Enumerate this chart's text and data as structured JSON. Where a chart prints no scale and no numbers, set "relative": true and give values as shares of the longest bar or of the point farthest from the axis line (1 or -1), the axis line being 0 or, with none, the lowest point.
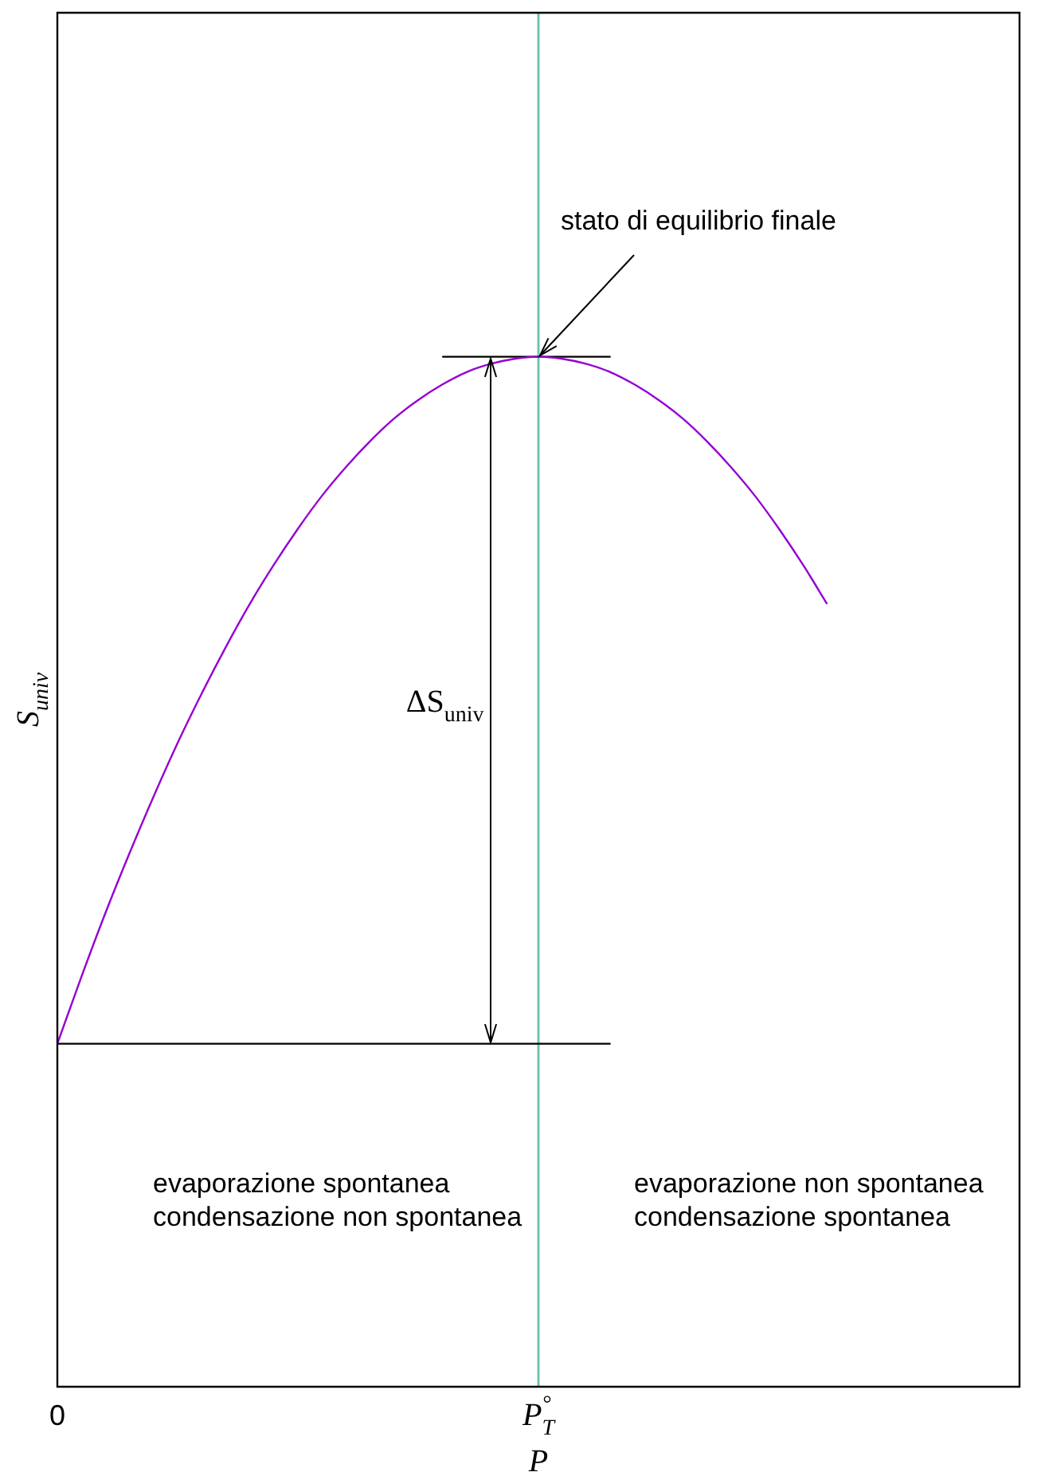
{
  "chart_data": {
    "type": "line",
    "relative": true,
    "xlabel": "P",
    "ylabel": "S$_{univ}$",
    "tick_labels": "x",
    "legend": false,
    "marker": "none",
    "categories": [
      "0",
      null,
      null,
      null,
      null,
      null,
      null,
      null,
      null,
      null,
      null,
      null,
      null,
      null,
      null,
      null,
      null,
      null,
      null,
      null,
      "P$_{T}$$^{°}$",
      null,
      null,
      null,
      null,
      null,
      null,
      null,
      null,
      null,
      null,
      null,
      null,
      null,
      null,
      null,
      null,
      null,
      null,
      null,
      null
    ],
    "series": [
      {
        "color": "#9400d3",
        "values": [
          0.333,
          0.398,
          0.46,
          0.518,
          0.573,
          0.625,
          0.673,
          0.718,
          0.76,
          0.798,
          0.833,
          0.865,
          0.893,
          0.918,
          0.94,
          0.958,
          0.973,
          0.985,
          0.993,
          0.998,
          1,
          0.998,
          0.993,
          0.985,
          0.973,
          0.958,
          0.94,
          0.918,
          0.893,
          0.865,
          0.833,
          0.798,
          0.76,
          null,
          null,
          null,
          null,
          null,
          null,
          null,
          null
        ]
      },
      {
        "color": "#000000",
        "values": [
          null,
          null,
          null,
          null,
          null,
          null,
          null,
          null,
          null,
          null,
          null,
          null,
          null,
          null,
          null,
          null,
          1,
          1,
          1,
          1,
          1,
          1,
          1,
          1,
          null,
          null,
          null,
          null,
          null,
          null,
          null,
          null,
          null,
          null,
          null,
          null,
          null,
          null,
          null,
          null,
          null
        ]
      },
      {
        "color": "#000000",
        "values": [
          0.333,
          0.333,
          0.333,
          0.333,
          0.333,
          0.333,
          0.333,
          0.333,
          0.333,
          0.333,
          0.333,
          0.333,
          0.333,
          0.333,
          0.333,
          0.333,
          0.333,
          0.333,
          0.333,
          0.333,
          0.333,
          0.333,
          0.333,
          0.333,
          null,
          null,
          null,
          null,
          null,
          null,
          null,
          null,
          null,
          null,
          null,
          null,
          null,
          null,
          null,
          null,
          null
        ]
      }
    ],
    "ref_lines": [
      {
        "axis": "x",
        "value": "P$_{T}$$^{°}$",
        "color": "#6cc5b0"
      }
    ],
    "annotations": [
      {
        "text": "stato di equilibrio finale",
        "x": "P$_{T}$$^{°}$",
        "y": 1
      },
      "ΔS$_{univ}$",
      "evaporazione spontanea\ncondensazione non spontanea",
      "evaporazione non spontanea\ncondensazione spontanea"
    ]
  }
}
